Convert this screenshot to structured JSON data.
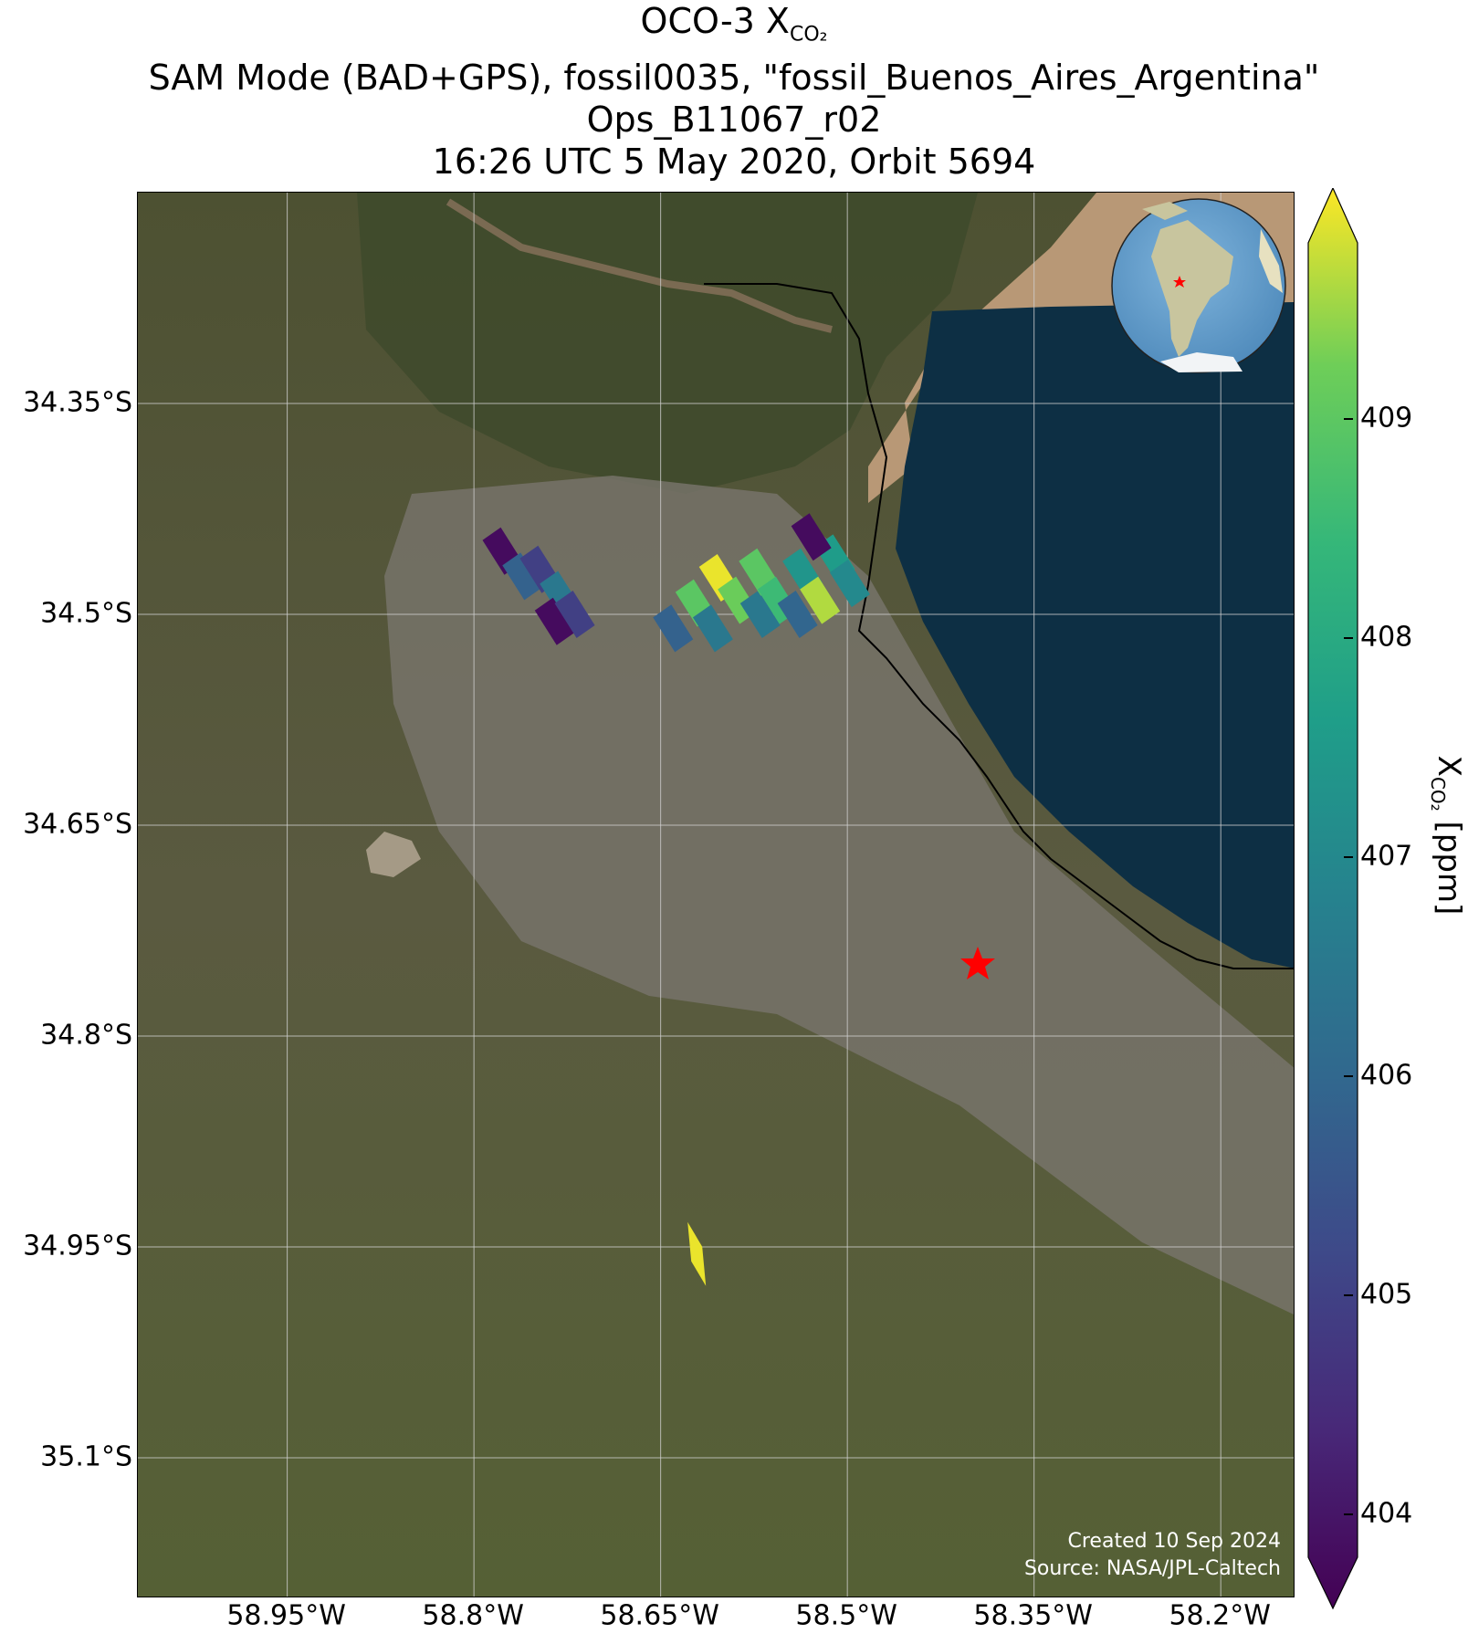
{
  "title": {
    "line1_prefix": "OCO-3 X",
    "line1_sub": "CO₂",
    "line2": "SAM Mode (BAD+GPS), fossil0035, \"fossil_Buenos_Aires_Argentina\"",
    "line3": "Ops_B11067_r02",
    "line4": "16:26 UTC 5 May 2020, Orbit 5694"
  },
  "map": {
    "lat_ticks": [
      "34.35°S",
      "34.5°S",
      "34.65°S",
      "34.8°S",
      "34.95°S",
      "35.1°S"
    ],
    "lon_ticks": [
      "58.95°W",
      "58.8°W",
      "58.65°W",
      "58.5°W",
      "58.35°W",
      "58.2°W"
    ],
    "target_marker": "red-star",
    "target_color": "#ff0000",
    "inset": "globe-south-america"
  },
  "credit": {
    "created": "Created 10 Sep 2024",
    "source": "Source: NASA/JPL-Caltech"
  },
  "colorbar": {
    "ticks": [
      "404",
      "405",
      "406",
      "407",
      "408",
      "409"
    ],
    "label_prefix": "X",
    "label_sub": "CO₂",
    "label_suffix": " [ppm]",
    "colormap": "viridis",
    "vmin": 403.8,
    "vmax": 409.8
  },
  "chart_data": {
    "type": "heatmap",
    "lat_range": [
      -35.2,
      -34.2
    ],
    "lon_range": [
      -59.07,
      -58.14
    ],
    "soundings": [
      {
        "lon": -58.777,
        "lat": -34.455,
        "xco2": 404.0
      },
      {
        "lon": -58.761,
        "lat": -34.473,
        "xco2": 405.9
      },
      {
        "lon": -58.747,
        "lat": -34.468,
        "xco2": 405.1
      },
      {
        "lon": -58.731,
        "lat": -34.486,
        "xco2": 406.5
      },
      {
        "lon": -58.735,
        "lat": -34.505,
        "xco2": 404.0
      },
      {
        "lon": -58.719,
        "lat": -34.5,
        "xco2": 405.1
      },
      {
        "lon": -58.64,
        "lat": -34.51,
        "xco2": 405.9
      },
      {
        "lon": -58.622,
        "lat": -34.492,
        "xco2": 408.8
      },
      {
        "lon": -58.603,
        "lat": -34.474,
        "xco2": 409.7
      },
      {
        "lon": -58.608,
        "lat": -34.51,
        "xco2": 406.5
      },
      {
        "lon": -58.588,
        "lat": -34.49,
        "xco2": 409.0
      },
      {
        "lon": -58.57,
        "lat": -34.5,
        "xco2": 406.5
      },
      {
        "lon": -58.571,
        "lat": -34.47,
        "xco2": 408.8
      },
      {
        "lon": -58.556,
        "lat": -34.49,
        "xco2": 408.4
      },
      {
        "lon": -58.536,
        "lat": -34.47,
        "xco2": 407.3
      },
      {
        "lon": -58.54,
        "lat": -34.5,
        "xco2": 406.0
      },
      {
        "lon": -58.522,
        "lat": -34.49,
        "xco2": 409.4
      },
      {
        "lon": -58.51,
        "lat": -34.46,
        "xco2": 407.5
      },
      {
        "lon": -58.498,
        "lat": -34.478,
        "xco2": 407.0
      },
      {
        "lon": -58.529,
        "lat": -34.445,
        "xco2": 404.0
      },
      {
        "lon": -58.621,
        "lat": -34.955,
        "xco2": 409.7
      }
    ]
  }
}
